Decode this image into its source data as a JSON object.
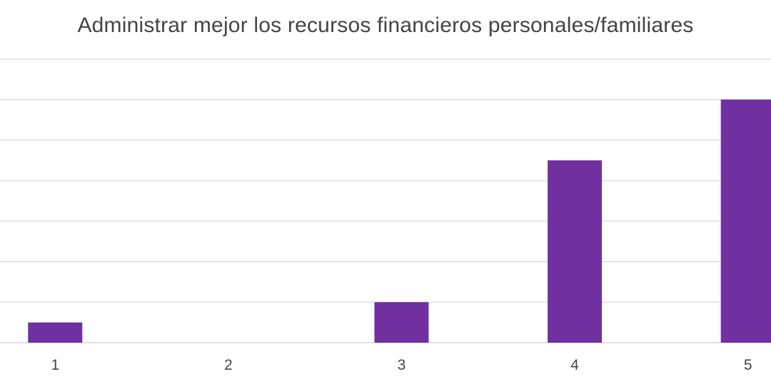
{
  "chart_data": {
    "type": "bar",
    "title": "Administrar mejor los recursos financieros personales/familiares",
    "xlabel": "",
    "ylabel": "",
    "categories": [
      "1",
      "2",
      "3",
      "4",
      "5"
    ],
    "series": [
      {
        "values": [
          1,
          0,
          2,
          9,
          12
        ],
        "color": "#7030a0"
      }
    ],
    "ylim": [
      0,
      14
    ],
    "grid": true,
    "gridline_color": "#d9d9d9",
    "legend": "none"
  }
}
